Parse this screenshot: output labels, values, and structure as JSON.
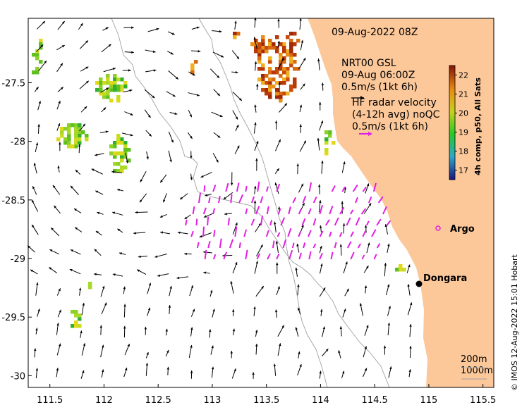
{
  "header": {
    "timestamp": "09-Aug-2022 08Z"
  },
  "legend": {
    "nrt_title": "NRT00 GSL",
    "nrt_time": "09-Aug 06:00Z",
    "nrt_scale": "0.5m/s (1kt 6h)",
    "hf_line1": "HF radar velocity",
    "hf_line2": "(4-12h avg) noQC",
    "hf_scale": "0.5m/s (1kt 6h)"
  },
  "colorbar": {
    "label": "4h comp, p50, All Sats",
    "ticks": [
      "22",
      "21",
      "20",
      "19",
      "18",
      "17"
    ],
    "range": [
      16.5,
      22.5
    ],
    "colors": [
      "#1a1a80",
      "#2fa6c8",
      "#28c828",
      "#c8d020",
      "#e88a14",
      "#8a1a08"
    ]
  },
  "places": {
    "argo": "Argo",
    "dongara": "Dongara"
  },
  "depth_legend": {
    "d1": "200m",
    "d2": "1000m"
  },
  "credit": "© IMOS 12-Aug-2022 15:01 Hobart",
  "axes": {
    "x_ticks": [
      "111.5",
      "112",
      "112.5",
      "113",
      "113.5",
      "114",
      "114.5",
      "115",
      "115.5"
    ],
    "y_ticks": [
      "-27.5",
      "-28",
      "-28.5",
      "-29",
      "-29.5",
      "-30"
    ],
    "x_values": [
      111.5,
      112,
      112.5,
      113,
      113.5,
      114,
      114.5,
      115,
      115.5
    ],
    "y_values": [
      -27.5,
      -28,
      -28.5,
      -29,
      -29.5,
      -30
    ],
    "xlim": [
      111.3,
      115.6
    ],
    "ylim": [
      -30.1,
      -26.95
    ]
  },
  "colors": {
    "land": "#fcc89a",
    "vector": "#000000",
    "hf_vector": "#e020e0",
    "bathy": "#a0a0a0"
  }
}
